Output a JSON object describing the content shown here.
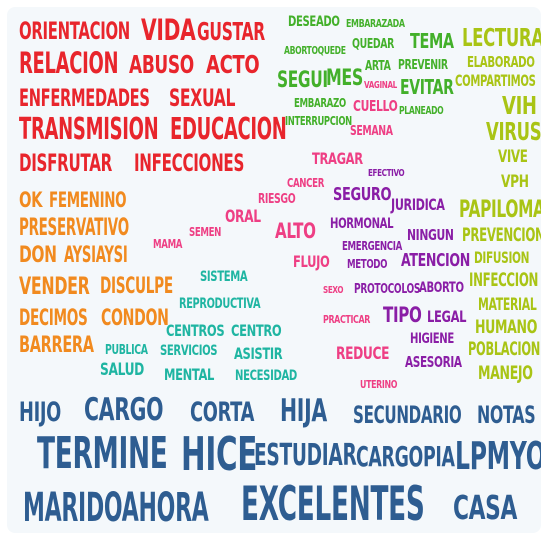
{
  "words": [
    {
      "text": "ORIENTACION",
      "color": "#e8252c"
    },
    {
      "text": "VIDA",
      "color": "#e8252c"
    },
    {
      "text": "GUSTAR",
      "color": "#e8252c"
    },
    {
      "text": "RELACION",
      "color": "#e8252c"
    },
    {
      "text": "ABUSO",
      "color": "#e8252c"
    },
    {
      "text": "ACTO",
      "color": "#e8252c"
    },
    {
      "text": "ENFERMEDADES",
      "color": "#e8252c"
    },
    {
      "text": "SEXUAL",
      "color": "#e8252c"
    },
    {
      "text": "TRANSMISION",
      "color": "#e8252c"
    },
    {
      "text": "EDUCACION",
      "color": "#e8252c"
    },
    {
      "text": "DISFRUTAR",
      "color": "#e8252c"
    },
    {
      "text": "INFECCIONES",
      "color": "#e8252c"
    },
    {
      "text": "DESEADO",
      "color": "#43b02a"
    },
    {
      "text": "EMBARAZADA",
      "color": "#43b02a"
    },
    {
      "text": "ABORTOQUEDE",
      "color": "#43b02a"
    },
    {
      "text": "QUEDAR",
      "color": "#43b02a"
    },
    {
      "text": "TEMA",
      "color": "#43b02a"
    },
    {
      "text": "ARTA",
      "color": "#43b02a"
    },
    {
      "text": "PREVENIR",
      "color": "#43b02a"
    },
    {
      "text": "SEGUI",
      "color": "#43b02a"
    },
    {
      "text": "MES",
      "color": "#43b02a"
    },
    {
      "text": "VAGINAL",
      "color": "#ee3f84"
    },
    {
      "text": "EVITAR",
      "color": "#43b02a"
    },
    {
      "text": "EMBARAZO",
      "color": "#43b02a"
    },
    {
      "text": "CUELLO",
      "color": "#ee3f84"
    },
    {
      "text": "PLANEADO",
      "color": "#43b02a"
    },
    {
      "text": "INTERRUPCION",
      "color": "#43b02a"
    },
    {
      "text": "SEMANA",
      "color": "#ee3f84"
    },
    {
      "text": "LECTURA",
      "color": "#a9c415"
    },
    {
      "text": "ELABORADO",
      "color": "#a9c415"
    },
    {
      "text": "COMPARTIMOS",
      "color": "#a9c415"
    },
    {
      "text": "VIH",
      "color": "#a9c415"
    },
    {
      "text": "VIRUS",
      "color": "#a9c415"
    },
    {
      "text": "VIVE",
      "color": "#a9c415"
    },
    {
      "text": "VPH",
      "color": "#a9c415"
    },
    {
      "text": "PAPILOMA",
      "color": "#a9c415"
    },
    {
      "text": "PREVENCION",
      "color": "#a9c415"
    },
    {
      "text": "DIFUSION",
      "color": "#a9c415"
    },
    {
      "text": "INFECCION",
      "color": "#a9c415"
    },
    {
      "text": "MATERIAL",
      "color": "#a9c415"
    },
    {
      "text": "HUMANO",
      "color": "#a9c415"
    },
    {
      "text": "POBLACION",
      "color": "#a9c415"
    },
    {
      "text": "MANEJO",
      "color": "#a9c415"
    },
    {
      "text": "OK",
      "color": "#f18a1f"
    },
    {
      "text": "FEMENINO",
      "color": "#f18a1f"
    },
    {
      "text": "PRESERVATIVO",
      "color": "#f18a1f"
    },
    {
      "text": "DON",
      "color": "#f18a1f"
    },
    {
      "text": "AYSIAYSI",
      "color": "#f18a1f"
    },
    {
      "text": "VENDER",
      "color": "#f18a1f"
    },
    {
      "text": "DISCULPE",
      "color": "#f18a1f"
    },
    {
      "text": "DECIMOS",
      "color": "#f18a1f"
    },
    {
      "text": "CONDON",
      "color": "#f18a1f"
    },
    {
      "text": "BARRERA",
      "color": "#f18a1f"
    },
    {
      "text": "TRAGAR",
      "color": "#ee3f84"
    },
    {
      "text": "CANCER",
      "color": "#ee3f84"
    },
    {
      "text": "EFECTIVO",
      "color": "#8a1ea6"
    },
    {
      "text": "RIESGO",
      "color": "#ee3f84"
    },
    {
      "text": "SEGURO",
      "color": "#8a1ea6"
    },
    {
      "text": "JURIDICA",
      "color": "#8a1ea6"
    },
    {
      "text": "ORAL",
      "color": "#ee3f84"
    },
    {
      "text": "SEMEN",
      "color": "#ee3f84"
    },
    {
      "text": "ALTO",
      "color": "#ee3f84"
    },
    {
      "text": "HORMONAL",
      "color": "#8a1ea6"
    },
    {
      "text": "NINGUN",
      "color": "#8a1ea6"
    },
    {
      "text": "MAMA",
      "color": "#ee3f84"
    },
    {
      "text": "EMERGENCIA",
      "color": "#8a1ea6"
    },
    {
      "text": "FLUJO",
      "color": "#ee3f84"
    },
    {
      "text": "METODO",
      "color": "#8a1ea6"
    },
    {
      "text": "ATENCION",
      "color": "#8a1ea6"
    },
    {
      "text": "SEXO",
      "color": "#ee3f84"
    },
    {
      "text": "PROTOCOLOS",
      "color": "#8a1ea6"
    },
    {
      "text": "ABORTO",
      "color": "#8a1ea6"
    },
    {
      "text": "PRACTICAR",
      "color": "#ee3f84"
    },
    {
      "text": "TIPO",
      "color": "#8a1ea6"
    },
    {
      "text": "LEGAL",
      "color": "#8a1ea6"
    },
    {
      "text": "HIGIENE",
      "color": "#8a1ea6"
    },
    {
      "text": "REDUCE",
      "color": "#ee3f84"
    },
    {
      "text": "ASESORIA",
      "color": "#8a1ea6"
    },
    {
      "text": "UTERINO",
      "color": "#ee3f84"
    },
    {
      "text": "SISTEMA",
      "color": "#1fb5a2"
    },
    {
      "text": "REPRODUCTIVA",
      "color": "#1fb5a2"
    },
    {
      "text": "CENTROS",
      "color": "#1fb5a2"
    },
    {
      "text": "CENTRO",
      "color": "#1fb5a2"
    },
    {
      "text": "PUBLICA",
      "color": "#1fb5a2"
    },
    {
      "text": "SERVICIOS",
      "color": "#1fb5a2"
    },
    {
      "text": "ASISTIR",
      "color": "#1fb5a2"
    },
    {
      "text": "SALUD",
      "color": "#1fb5a2"
    },
    {
      "text": "MENTAL",
      "color": "#1fb5a2"
    },
    {
      "text": "NECESIDAD",
      "color": "#1fb5a2"
    },
    {
      "text": "HIJO",
      "color": "#2e5d91"
    },
    {
      "text": "CARGO",
      "color": "#2e5d91"
    },
    {
      "text": "CORTA",
      "color": "#2e5d91"
    },
    {
      "text": "HIJA",
      "color": "#2e5d91"
    },
    {
      "text": "SECUNDARIO",
      "color": "#2e5d91"
    },
    {
      "text": "NOTAS",
      "color": "#2e5d91"
    },
    {
      "text": "TERMINE",
      "color": "#2e5d91"
    },
    {
      "text": "HICE",
      "color": "#2e5d91"
    },
    {
      "text": "ESTUDIAR",
      "color": "#2e5d91"
    },
    {
      "text": "CARGOPIA",
      "color": "#2e5d91"
    },
    {
      "text": "LPMYO",
      "color": "#2e5d91"
    },
    {
      "text": "MARIDOAHORA",
      "color": "#2e5d91"
    },
    {
      "text": "EXCELENTES",
      "color": "#2e5d91"
    },
    {
      "text": "CASA",
      "color": "#2e5d91"
    }
  ]
}
